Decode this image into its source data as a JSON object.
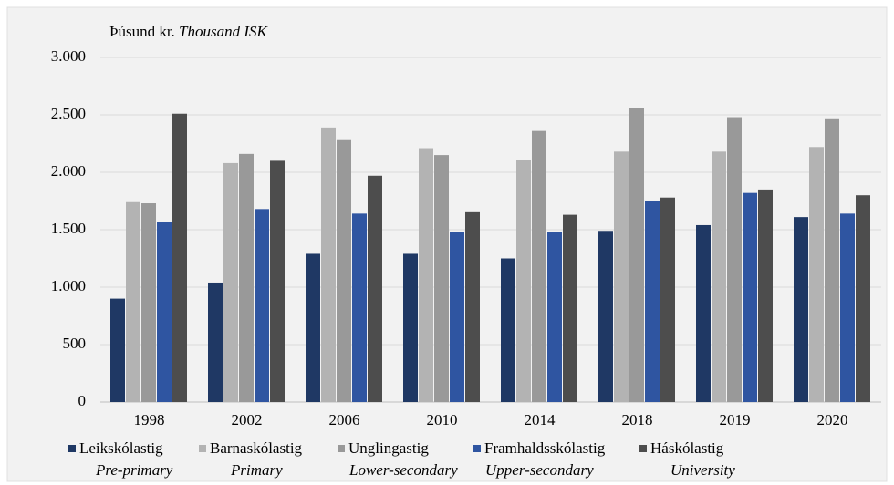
{
  "chart_data": {
    "type": "bar",
    "y_label": "Þúsund kr.",
    "y_label_en": "Thousand ISK",
    "categories": [
      "1998",
      "2002",
      "2006",
      "2010",
      "2014",
      "2018",
      "2019",
      "2020"
    ],
    "series": [
      {
        "name": "Leikskólastig",
        "name_en": "Pre-primary",
        "color": "#1f3864",
        "values": [
          900,
          1040,
          1290,
          1290,
          1250,
          1490,
          1540,
          1610
        ]
      },
      {
        "name": "Barnaskólastig",
        "name_en": "Primary",
        "color": "#b3b3b3",
        "values": [
          1740,
          2080,
          2390,
          2210,
          2110,
          2180,
          2180,
          2220
        ]
      },
      {
        "name": "Unglingastig",
        "name_en": "Lower-secondary",
        "color": "#999999",
        "values": [
          1730,
          2160,
          2280,
          2150,
          2360,
          2560,
          2480,
          2470
        ]
      },
      {
        "name": "Framhaldsskólastig",
        "name_en": "Upper-secondary",
        "color": "#2f55a1",
        "values": [
          1570,
          1680,
          1640,
          1480,
          1480,
          1750,
          1820,
          1640
        ]
      },
      {
        "name": "Háskólastig",
        "name_en": "University",
        "color": "#4d4d4d",
        "values": [
          2510,
          2100,
          1970,
          1660,
          1630,
          1780,
          1850,
          1800
        ]
      }
    ],
    "ylim": [
      0,
      3000
    ],
    "yticks": [
      0,
      500,
      {
        "value": 1000,
        "label": "1.000"
      },
      {
        "value": 1500,
        "label": "1.500"
      },
      {
        "value": 2000,
        "label": "2.000"
      },
      {
        "value": 2500,
        "label": "2.500"
      },
      {
        "value": 3000,
        "label": "3.000"
      }
    ],
    "grid": true
  }
}
